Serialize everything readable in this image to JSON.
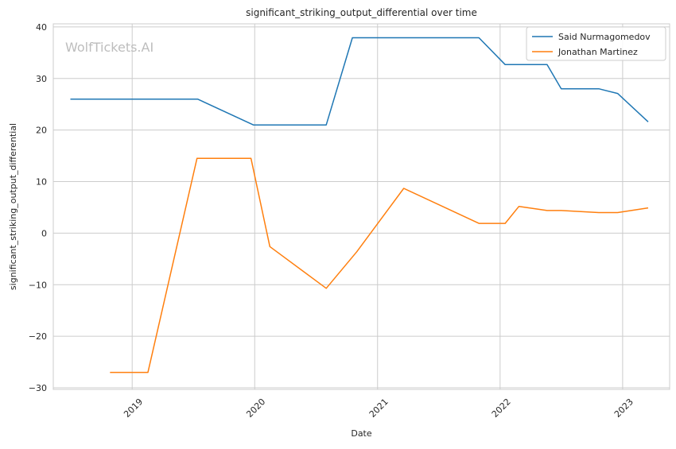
{
  "watermark": "WolfTickets.AI",
  "chart_data": {
    "type": "line",
    "title": "significant_striking_output_differential over time",
    "xlabel": "Date",
    "ylabel": "significant_striking_output_differential",
    "xlim": [
      "2018-05-11",
      "2023-05-21"
    ],
    "ylim": [
      -30.3,
      40.6
    ],
    "x_ticks": [
      "2019-01-01",
      "2020-01-01",
      "2021-01-01",
      "2022-01-01",
      "2023-01-01"
    ],
    "x_tick_labels": [
      "2019",
      "2020",
      "2021",
      "2022",
      "2023"
    ],
    "y_ticks": [
      -30,
      -20,
      -10,
      0,
      10,
      20,
      30,
      40
    ],
    "y_tick_labels": [
      "−30",
      "−20",
      "−10",
      "0",
      "10",
      "20",
      "30",
      "40"
    ],
    "grid": true,
    "legend_position": "top-right",
    "series": [
      {
        "name": "Said Nurmagomedov",
        "color": "#1f77b4",
        "points": [
          {
            "x": "2018-07-01",
            "y": 26.0
          },
          {
            "x": "2019-07-15",
            "y": 26.0
          },
          {
            "x": "2019-12-28",
            "y": 21.0
          },
          {
            "x": "2020-08-01",
            "y": 21.0
          },
          {
            "x": "2020-10-18",
            "y": 37.9
          },
          {
            "x": "2021-10-30",
            "y": 37.9
          },
          {
            "x": "2022-01-16",
            "y": 32.7
          },
          {
            "x": "2022-05-21",
            "y": 32.7
          },
          {
            "x": "2022-07-02",
            "y": 28.0
          },
          {
            "x": "2022-10-22",
            "y": 28.0
          },
          {
            "x": "2022-12-17",
            "y": 27.1
          },
          {
            "x": "2023-03-18",
            "y": 21.6
          }
        ]
      },
      {
        "name": "Jonathan Martinez",
        "color": "#ff7f0e",
        "points": [
          {
            "x": "2018-10-27",
            "y": -27.0
          },
          {
            "x": "2019-02-17",
            "y": -27.0
          },
          {
            "x": "2019-07-13",
            "y": 14.5
          },
          {
            "x": "2019-12-21",
            "y": 14.5
          },
          {
            "x": "2020-02-15",
            "y": -2.6
          },
          {
            "x": "2020-08-01",
            "y": -10.7
          },
          {
            "x": "2020-10-31",
            "y": -3.6
          },
          {
            "x": "2021-03-20",
            "y": 8.7
          },
          {
            "x": "2021-10-30",
            "y": 1.9
          },
          {
            "x": "2022-01-16",
            "y": 1.9
          },
          {
            "x": "2022-02-26",
            "y": 5.2
          },
          {
            "x": "2022-05-21",
            "y": 4.4
          },
          {
            "x": "2022-07-02",
            "y": 4.4
          },
          {
            "x": "2022-10-22",
            "y": 4.0
          },
          {
            "x": "2022-12-17",
            "y": 4.0
          },
          {
            "x": "2023-03-18",
            "y": 4.9
          }
        ]
      }
    ]
  }
}
